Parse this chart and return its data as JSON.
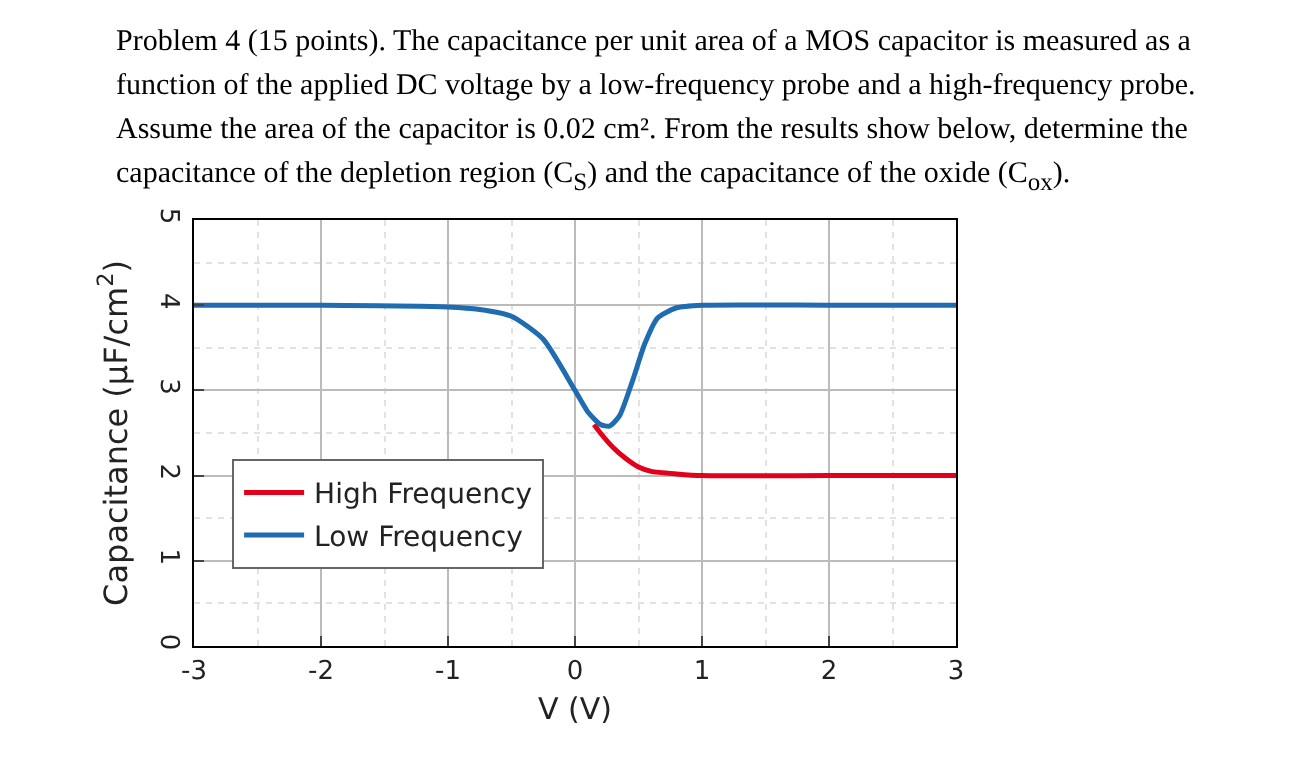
{
  "chart_data": {
    "type": "line",
    "title": "Problem 4 (15 points). The capacitance per unit area of a MOS capacitor is measured as a function of the applied DC voltage by a low-frequency probe and a high-frequency probe. Assume the area of the capacitor is 0.02 cm². From the results show below, determine the capacitance of the depletion region (C$_{S}$) and the capacitance of the oxide (C$_{ox}$).",
    "xlabel": "V (V)",
    "ylabel": "Capacitance (µF/cm$^{2}$)",
    "series": [
      {
        "name": "High Frequency",
        "color": "#e3001b",
        "x": [
          0.15,
          0.2,
          0.3,
          0.4,
          0.5,
          0.6,
          0.8,
          1,
          2,
          3
        ],
        "values": [
          2.6,
          2.5,
          2.33,
          2.2,
          2.1,
          2.05,
          2.02,
          2.0,
          2.0,
          2.0
        ]
      },
      {
        "name": "Low Frequency",
        "color": "#1f6cb0",
        "x": [
          -3,
          -2,
          -1,
          -0.75,
          -0.5,
          -0.25,
          0,
          0.1,
          0.2,
          0.27,
          0.35,
          0.45,
          0.55,
          0.65,
          0.8,
          1,
          2,
          3
        ],
        "values": [
          4,
          4,
          3.98,
          3.95,
          3.87,
          3.6,
          3.0,
          2.75,
          2.6,
          2.58,
          2.7,
          3.1,
          3.55,
          3.85,
          3.97,
          4,
          4,
          4
        ]
      }
    ],
    "xlim": [
      -3,
      3
    ],
    "xticks": [
      -3,
      -2,
      -1,
      0,
      1,
      2,
      3
    ],
    "ylim": [
      0,
      5
    ],
    "yticks": [
      0,
      1,
      2,
      3,
      4,
      5
    ],
    "grid": true,
    "legend": "bottom left",
    "line_style": "solid",
    "marker": "none"
  }
}
